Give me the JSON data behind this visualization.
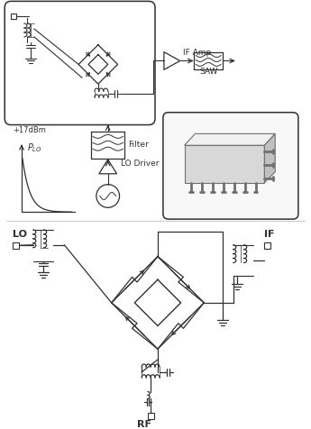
{
  "bg_color": "#ffffff",
  "line_color": "#303030",
  "gray_color": "#707070",
  "light_gray": "#b0b0b0",
  "white": "#ffffff",
  "pkg_face": "#e8e8e8",
  "pkg_top": "#f5f5f5",
  "pkg_right": "#d0d0d0",
  "top_labels": {
    "IF_Amp": "IF Amp",
    "SAW": "SAW",
    "Filter": "Filter",
    "LO_Driver": "LO Driver",
    "PLO": "$P_{LO}$",
    "plus17": "+17dBm"
  },
  "bottom_labels": {
    "LO": "LO",
    "IF": "IF",
    "RF": "RF"
  }
}
